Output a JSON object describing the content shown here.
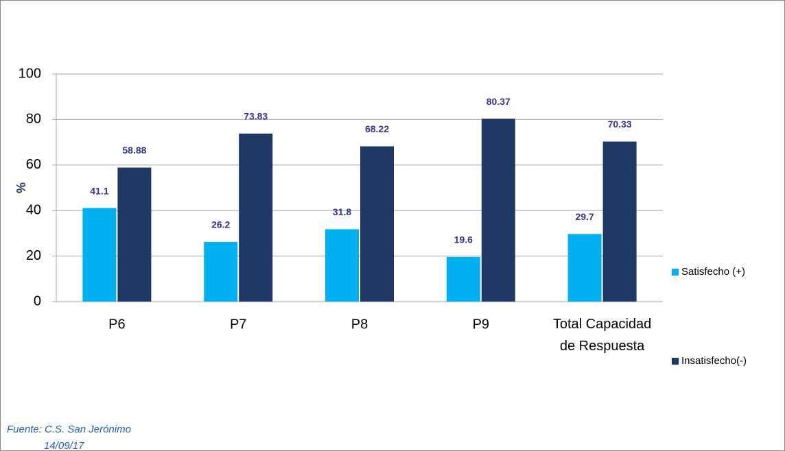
{
  "chart_data": {
    "type": "bar",
    "categories": [
      "P6",
      "P7",
      "P8",
      "P9",
      "Total Capacidad de Respuesta"
    ],
    "series": [
      {
        "name": "Satisfecho (+)",
        "color": "#00b0f0",
        "values": [
          41.1,
          26.2,
          31.8,
          19.6,
          29.7
        ]
      },
      {
        "name": "Insatisfecho(-)",
        "color": "#1f3864",
        "values": [
          58.88,
          73.83,
          68.22,
          80.37,
          70.33
        ]
      }
    ],
    "y_label": "%",
    "ylim": [
      0,
      100
    ],
    "yticks": [
      0,
      20,
      40,
      60,
      80,
      100
    ],
    "grid": true,
    "legend": "right",
    "annotations": [
      "Fuente: C.S. San Jerónimo",
      "14/09/17"
    ]
  }
}
